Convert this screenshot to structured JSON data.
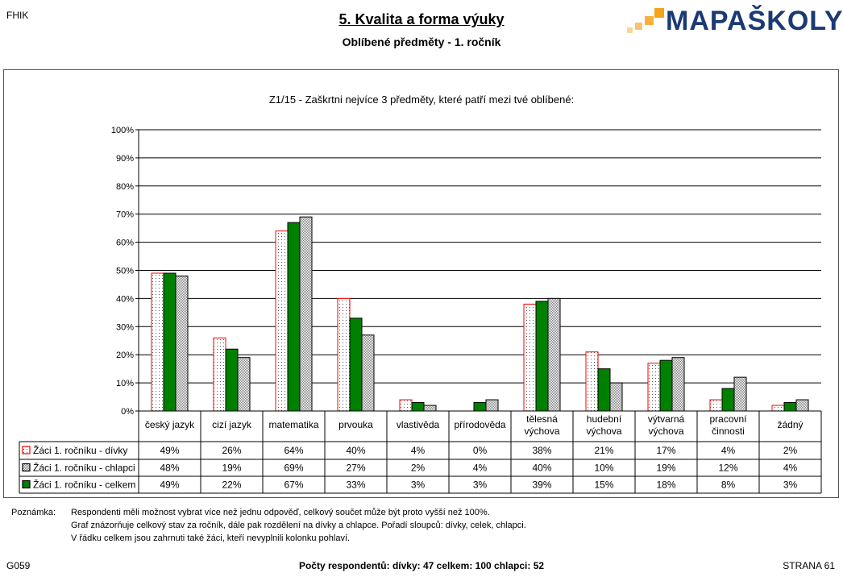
{
  "header": {
    "corner_code": "FHIK",
    "title": "5. Kvalita a forma výuky",
    "subtitle": "Oblíbené předměty - 1. ročník",
    "logo_text": "MAPAŠKOLY"
  },
  "colors": {
    "girls_border": "#ff0000",
    "boys_fill": "#c0c0c0",
    "total_fill": "#008000",
    "logo_orange": "#f7a21b",
    "logo_blue": "#1b3a73"
  },
  "chart_data": {
    "type": "bar",
    "title": "Z1/15 - Zaškrtni nejvíce 3 předměty, které patří mezi tvé oblíbené:",
    "categories": [
      [
        "český jazyk"
      ],
      [
        "cizí jazyk"
      ],
      [
        "matematika"
      ],
      [
        "prvouka"
      ],
      [
        "vlastivěda"
      ],
      [
        "přírodověda"
      ],
      [
        "tělesná",
        "výchova"
      ],
      [
        "hudební",
        "výchova"
      ],
      [
        "výtvarná",
        "výchova"
      ],
      [
        "pracovní",
        "činnosti"
      ],
      [
        "žádný"
      ]
    ],
    "y_ticks": [
      "0%",
      "10%",
      "20%",
      "30%",
      "40%",
      "50%",
      "60%",
      "70%",
      "80%",
      "90%",
      "100%"
    ],
    "ylim": [
      0,
      100
    ],
    "grid": true,
    "bar_order": [
      "girls",
      "total",
      "boys"
    ],
    "series": [
      {
        "key": "girls",
        "name": "Žáci 1. ročníku - dívky",
        "values": [
          49,
          26,
          64,
          40,
          4,
          0,
          38,
          21,
          17,
          4,
          2
        ],
        "labels": [
          "49%",
          "26%",
          "64%",
          "40%",
          "4%",
          "0%",
          "38%",
          "21%",
          "17%",
          "4%",
          "2%"
        ]
      },
      {
        "key": "boys",
        "name": "Žáci 1. ročníku - chlapci",
        "values": [
          48,
          19,
          69,
          27,
          2,
          4,
          40,
          10,
          19,
          12,
          4
        ],
        "labels": [
          "48%",
          "19%",
          "69%",
          "27%",
          "2%",
          "4%",
          "40%",
          "10%",
          "19%",
          "12%",
          "4%"
        ]
      },
      {
        "key": "total",
        "name": "Žáci 1. ročníku - celkem",
        "values": [
          49,
          22,
          67,
          33,
          3,
          3,
          39,
          15,
          18,
          8,
          3
        ],
        "labels": [
          "49%",
          "22%",
          "67%",
          "33%",
          "3%",
          "3%",
          "39%",
          "15%",
          "18%",
          "8%",
          "3%"
        ]
      }
    ]
  },
  "notes": {
    "label": "Poznámka:",
    "lines": [
      "Respondenti měli možnost vybrat více než jednu odpověď, celkový součet může být proto vyšší než 100%.",
      "Graf znázorňuje celkový stav za ročník, dále pak rozdělení na dívky a chlapce. Pořadí sloupců: dívky, celek, chlapci.",
      "V řádku celkem jsou zahrnuti také žáci, kteří nevyplnili kolonku pohlaví."
    ]
  },
  "footer": {
    "left": "G059",
    "center": "Počty respondentů:    dívky: 47    celkem: 100    chlapci: 52",
    "right": "STRANA 61"
  }
}
